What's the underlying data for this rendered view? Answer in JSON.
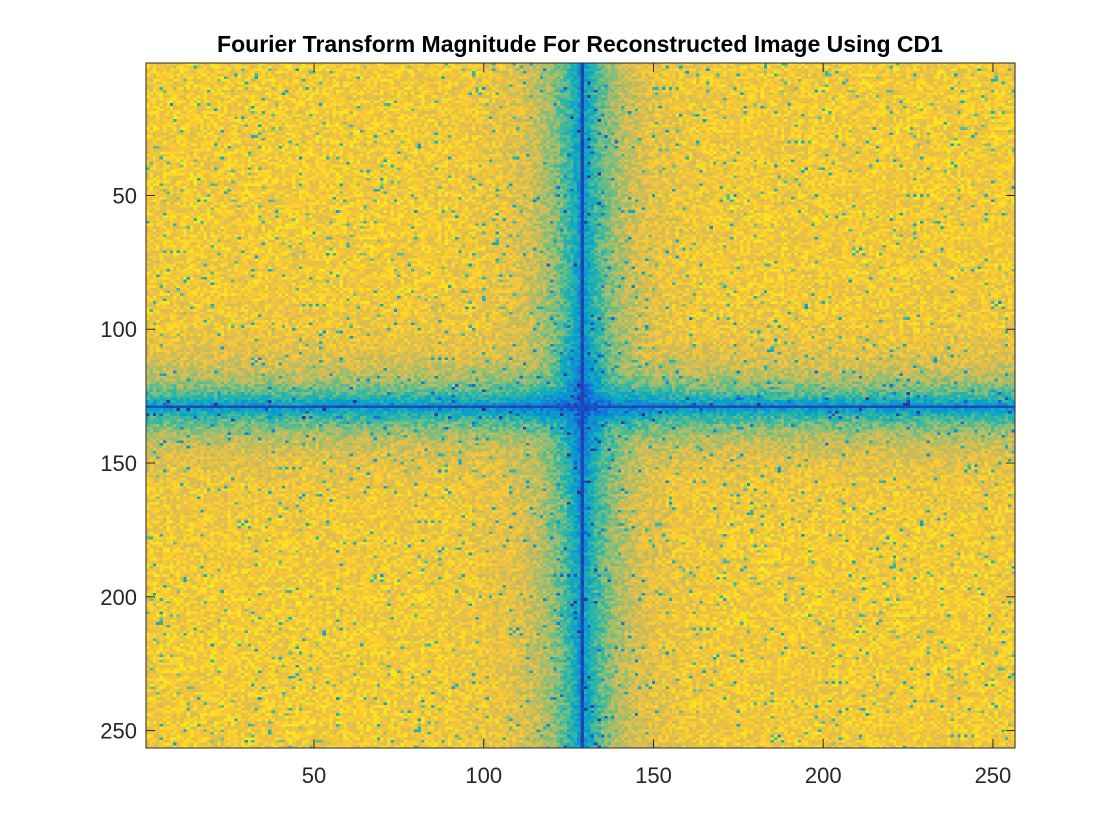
{
  "chart_data": {
    "type": "heatmap",
    "title": "Fourier Transform Magnitude For Reconstructed Image Using CD1",
    "xlabel": "",
    "ylabel": "",
    "xlim": [
      0.5,
      256.5
    ],
    "ylim": [
      0.5,
      256.5
    ],
    "y_direction": "reversed",
    "rows": 256,
    "cols": 256,
    "x_ticks": [
      50,
      100,
      150,
      200,
      250
    ],
    "y_ticks": [
      50,
      100,
      150,
      200,
      250
    ],
    "x_tick_labels": [
      "50",
      "100",
      "150",
      "200",
      "250"
    ],
    "y_tick_labels": [
      "50",
      "100",
      "150",
      "200",
      "250"
    ],
    "center": {
      "row": 129,
      "col": 129
    },
    "colormap": "parula",
    "colormap_stops": [
      "#352a87",
      "#0f5cdd",
      "#1481d6",
      "#06a4ca",
      "#2eb7a4",
      "#87bf77",
      "#d1bb59",
      "#fec832",
      "#f9fb0e"
    ],
    "grid": false,
    "legend": "none",
    "colorbar": false
  }
}
